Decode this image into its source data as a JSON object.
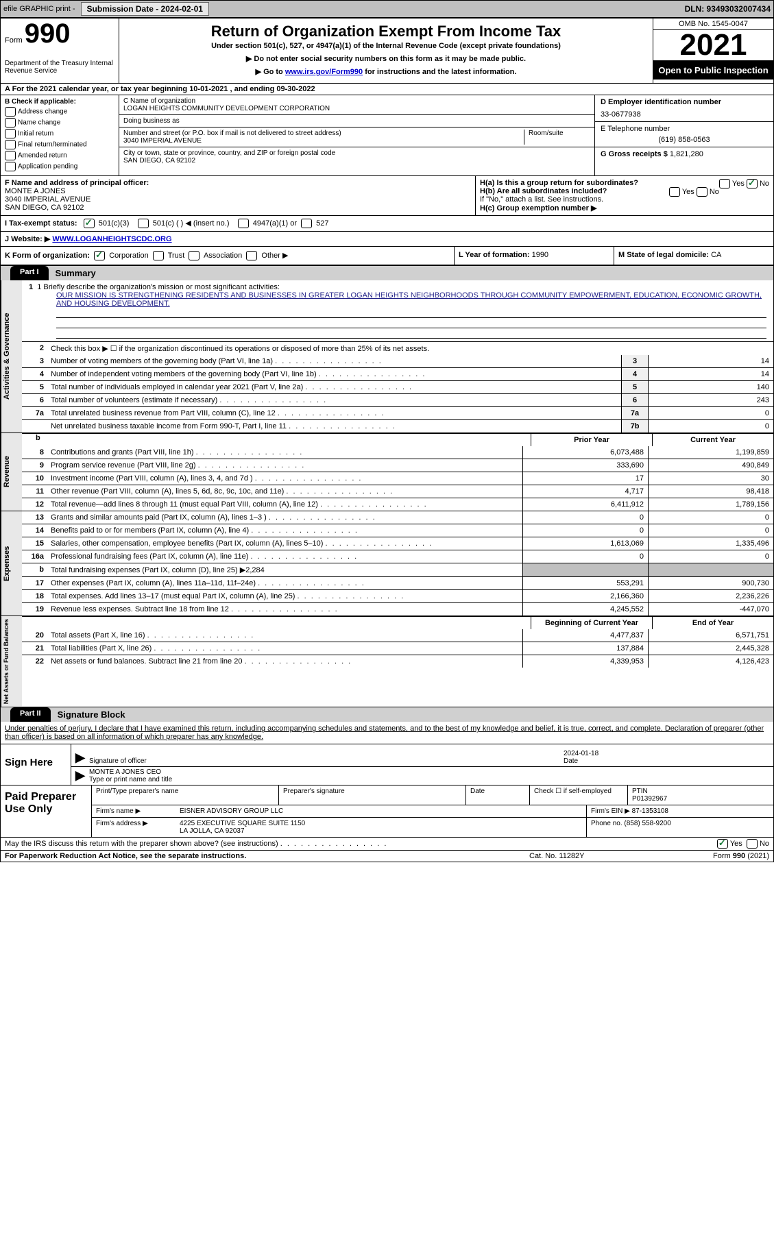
{
  "top": {
    "efile": "efile GRAPHIC print -",
    "submission": "Submission Date - 2024-02-01",
    "dln": "DLN: 93493032007434"
  },
  "header": {
    "form_label": "Form",
    "form_number": "990",
    "dept": "Department of the Treasury Internal Revenue Service",
    "title": "Return of Organization Exempt From Income Tax",
    "subtitle": "Under section 501(c), 527, or 4947(a)(1) of the Internal Revenue Code (except private foundations)",
    "note1": "▶ Do not enter social security numbers on this form as it may be made public.",
    "note2_pre": "▶ Go to ",
    "note2_link": "www.irs.gov/Form990",
    "note2_post": " for instructions and the latest information.",
    "omb": "OMB No. 1545-0047",
    "year": "2021",
    "inspection": "Open to Public Inspection"
  },
  "lineA": "A For the 2021 calendar year, or tax year beginning 10-01-2021    , and ending 09-30-2022",
  "B": {
    "title": "B Check if applicable:",
    "opts": [
      "Address change",
      "Name change",
      "Initial return",
      "Final return/terminated",
      "Amended return",
      "Application pending"
    ]
  },
  "C": {
    "name_lbl": "C Name of organization",
    "name": "LOGAN HEIGHTS COMMUNITY DEVELOPMENT CORPORATION",
    "dba_lbl": "Doing business as",
    "dba": "",
    "street_lbl": "Number and street (or P.O. box if mail is not delivered to street address)",
    "room_lbl": "Room/suite",
    "street": "3040 IMPERIAL AVENUE",
    "city_lbl": "City or town, state or province, country, and ZIP or foreign postal code",
    "city": "SAN DIEGO, CA  92102"
  },
  "D": {
    "ein_lbl": "D Employer identification number",
    "ein": "33-0677938",
    "phone_lbl": "E Telephone number",
    "phone": "(619) 858-0563",
    "gross_lbl": "G Gross receipts $",
    "gross": "1,821,280"
  },
  "F": {
    "lbl": "F Name and address of principal officer:",
    "name": "MONTE A JONES",
    "street": "3040 IMPERIAL AVENUE",
    "city": "SAN DIEGO, CA  92102"
  },
  "H": {
    "a": "H(a)  Is this a group return for subordinates?",
    "b": "H(b)  Are all subordinates included?",
    "b_note": "If \"No,\" attach a list. See instructions.",
    "c": "H(c)  Group exemption number ▶",
    "yes": "Yes",
    "no": "No"
  },
  "I": {
    "lbl": "I   Tax-exempt status:",
    "opts": [
      "501(c)(3)",
      "501(c) (  ) ◀ (insert no.)",
      "4947(a)(1) or",
      "527"
    ]
  },
  "J": {
    "lbl": "J   Website: ▶",
    "url": "WWW.LOGANHEIGHTSCDC.ORG"
  },
  "K": {
    "lbl": "K Form of organization:",
    "opts": [
      "Corporation",
      "Trust",
      "Association",
      "Other ▶"
    ]
  },
  "L": {
    "lbl": "L Year of formation:",
    "val": "1990"
  },
  "M": {
    "lbl": "M State of legal domicile:",
    "val": "CA"
  },
  "part1": {
    "tab": "Part I",
    "title": "Summary"
  },
  "vtabs": {
    "ag": "Activities & Governance",
    "rev": "Revenue",
    "exp": "Expenses",
    "na": "Net Assets or Fund Balances"
  },
  "mission": {
    "lbl": "1   Briefly describe the organization's mission or most significant activities:",
    "text": "OUR MISSION IS STRENGTHENING RESIDENTS AND BUSINESSES IN GREATER LOGAN HEIGHTS NEIGHBORHOODS THROUGH COMMUNITY EMPOWERMENT, EDUCATION, ECONOMIC GROWTH, AND HOUSING DEVELOPMENT."
  },
  "line2": "Check this box ▶ ☐ if the organization discontinued its operations or disposed of more than 25% of its net assets.",
  "lines_ag": [
    {
      "n": "3",
      "d": "Number of voting members of the governing body (Part VI, line 1a)",
      "b": "3",
      "v": "14"
    },
    {
      "n": "4",
      "d": "Number of independent voting members of the governing body (Part VI, line 1b)",
      "b": "4",
      "v": "14"
    },
    {
      "n": "5",
      "d": "Total number of individuals employed in calendar year 2021 (Part V, line 2a)",
      "b": "5",
      "v": "140"
    },
    {
      "n": "6",
      "d": "Total number of volunteers (estimate if necessary)",
      "b": "6",
      "v": "243"
    },
    {
      "n": "7a",
      "d": "Total unrelated business revenue from Part VIII, column (C), line 12",
      "b": "7a",
      "v": "0"
    },
    {
      "n": "",
      "d": "Net unrelated business taxable income from Form 990-T, Part I, line 11",
      "b": "7b",
      "v": "0"
    }
  ],
  "colhdr": {
    "prior": "Prior Year",
    "current": "Current Year"
  },
  "lines_rev": [
    {
      "n": "8",
      "d": "Contributions and grants (Part VIII, line 1h)",
      "p": "6,073,488",
      "c": "1,199,859"
    },
    {
      "n": "9",
      "d": "Program service revenue (Part VIII, line 2g)",
      "p": "333,690",
      "c": "490,849"
    },
    {
      "n": "10",
      "d": "Investment income (Part VIII, column (A), lines 3, 4, and 7d )",
      "p": "17",
      "c": "30"
    },
    {
      "n": "11",
      "d": "Other revenue (Part VIII, column (A), lines 5, 6d, 8c, 9c, 10c, and 11e)",
      "p": "4,717",
      "c": "98,418"
    },
    {
      "n": "12",
      "d": "Total revenue—add lines 8 through 11 (must equal Part VIII, column (A), line 12)",
      "p": "6,411,912",
      "c": "1,789,156"
    }
  ],
  "lines_exp": [
    {
      "n": "13",
      "d": "Grants and similar amounts paid (Part IX, column (A), lines 1–3 )",
      "p": "0",
      "c": "0"
    },
    {
      "n": "14",
      "d": "Benefits paid to or for members (Part IX, column (A), line 4)",
      "p": "0",
      "c": "0"
    },
    {
      "n": "15",
      "d": "Salaries, other compensation, employee benefits (Part IX, column (A), lines 5–10)",
      "p": "1,613,069",
      "c": "1,335,496"
    },
    {
      "n": "16a",
      "d": "Professional fundraising fees (Part IX, column (A), line 11e)",
      "p": "0",
      "c": "0"
    },
    {
      "n": "b",
      "d": "Total fundraising expenses (Part IX, column (D), line 25) ▶2,284",
      "p": "",
      "c": "",
      "shade": true
    },
    {
      "n": "17",
      "d": "Other expenses (Part IX, column (A), lines 11a–11d, 11f–24e)",
      "p": "553,291",
      "c": "900,730"
    },
    {
      "n": "18",
      "d": "Total expenses. Add lines 13–17 (must equal Part IX, column (A), line 25)",
      "p": "2,166,360",
      "c": "2,236,226"
    },
    {
      "n": "19",
      "d": "Revenue less expenses. Subtract line 18 from line 12",
      "p": "4,245,552",
      "c": "-447,070"
    }
  ],
  "colhdr2": {
    "begin": "Beginning of Current Year",
    "end": "End of Year"
  },
  "lines_na": [
    {
      "n": "20",
      "d": "Total assets (Part X, line 16)",
      "p": "4,477,837",
      "c": "6,571,751"
    },
    {
      "n": "21",
      "d": "Total liabilities (Part X, line 26)",
      "p": "137,884",
      "c": "2,445,328"
    },
    {
      "n": "22",
      "d": "Net assets or fund balances. Subtract line 21 from line 20",
      "p": "4,339,953",
      "c": "4,126,423"
    }
  ],
  "part2": {
    "tab": "Part II",
    "title": "Signature Block"
  },
  "sig_intro": "Under penalties of perjury, I declare that I have examined this return, including accompanying schedules and statements, and to the best of my knowledge and belief, it is true, correct, and complete. Declaration of preparer (other than officer) is based on all information of which preparer has any knowledge.",
  "sign": {
    "here": "Sign Here",
    "sig_officer": "Signature of officer",
    "date": "Date",
    "date_val": "2024-01-18",
    "name": "MONTE A JONES CEO",
    "name_lbl": "Type or print name and title"
  },
  "preparer": {
    "lbl": "Paid Preparer Use Only",
    "print_lbl": "Print/Type preparer's name",
    "sig_lbl": "Preparer's signature",
    "date_lbl": "Date",
    "check_lbl": "Check ☐ if self-employed",
    "ptin_lbl": "PTIN",
    "ptin": "P01392967",
    "firm_name_lbl": "Firm's name    ▶",
    "firm_name": "EISNER ADVISORY GROUP LLC",
    "firm_ein_lbl": "Firm's EIN ▶",
    "firm_ein": "87-1353108",
    "firm_addr_lbl": "Firm's address ▶",
    "firm_addr": "4225 EXECUTIVE SQUARE SUITE 1150",
    "firm_city": "LA JOLLA, CA  92037",
    "phone_lbl": "Phone no.",
    "phone": "(858) 558-9200"
  },
  "footer": {
    "discuss": "May the IRS discuss this return with the preparer shown above? (see instructions)",
    "yes": "Yes",
    "no": "No",
    "paperwork": "For Paperwork Reduction Act Notice, see the separate instructions.",
    "cat": "Cat. No. 11282Y",
    "form": "Form 990 (2021)"
  },
  "colors": {
    "link": "#0000cc",
    "checked": "#1a7a3a"
  }
}
